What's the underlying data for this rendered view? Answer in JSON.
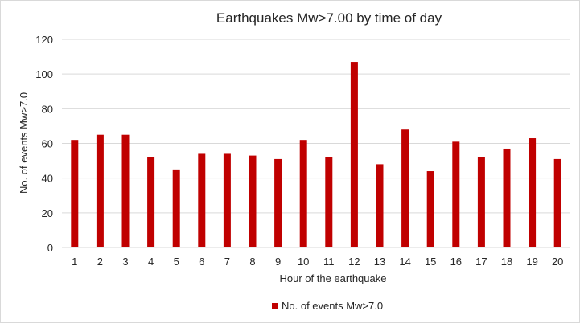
{
  "chart_data": {
    "type": "bar",
    "title": "Earthquakes Mw>7.00 by time of day",
    "xlabel": "Hour of the earthquake",
    "ylabel": "No. of events Mw>7.0",
    "categories": [
      "1",
      "2",
      "3",
      "4",
      "5",
      "6",
      "7",
      "8",
      "9",
      "10",
      "11",
      "12",
      "13",
      "14",
      "15",
      "16",
      "17",
      "18",
      "19",
      "20"
    ],
    "series": [
      {
        "name": "No. of events Mw>7.0",
        "color": "#c00000",
        "values": [
          62,
          65,
          65,
          52,
          45,
          54,
          54,
          53,
          51,
          62,
          52,
          107,
          48,
          68,
          44,
          61,
          52,
          57,
          63,
          51
        ]
      }
    ],
    "ylim": [
      0,
      120
    ],
    "yticks": [
      0,
      20,
      40,
      60,
      80,
      100,
      120
    ],
    "grid": true,
    "gridColor": "#d9d9d9",
    "legend": "bottom"
  }
}
